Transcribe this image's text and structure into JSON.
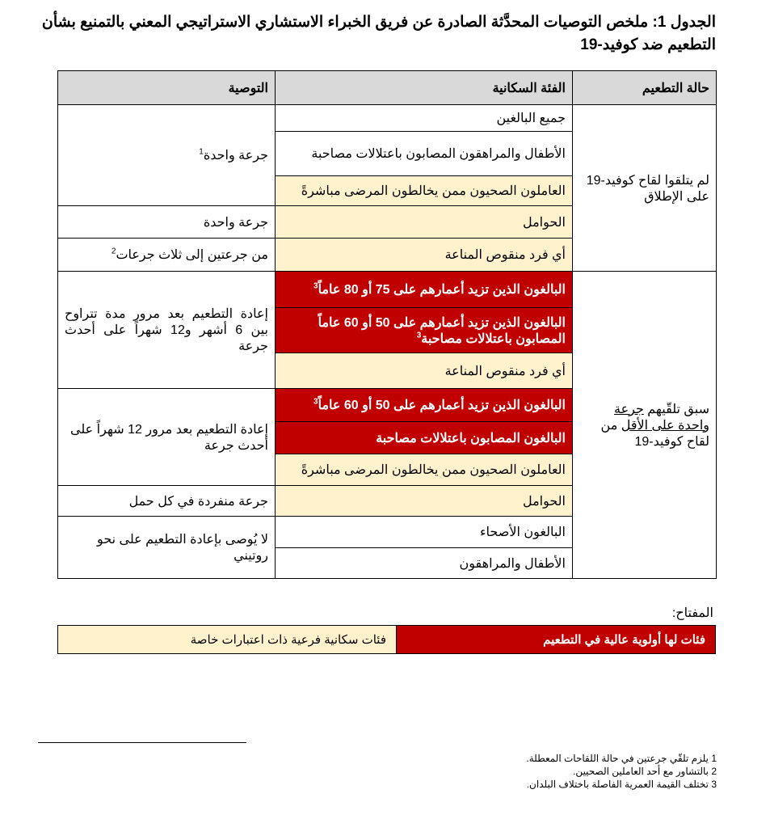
{
  "title": "الجدول 1: ملخص التوصيات المحدَّثة الصادرة عن فريق الخبراء الاستشاري الاستراتيجي المعني بالتمنيع بشأن التطعيم ضد كوفيد-19",
  "table": {
    "headers": [
      "حالة التطعيم",
      "الفئة السكانية",
      "التوصية"
    ],
    "status": {
      "never": "لم يتلقوا لقاح كوفيد-19 على الإطلاق",
      "prior_a": "سبق تلقّيهم ",
      "prior_u1": "جرعة واحدة على الأقل",
      "prior_b": " من لقاح كوفيد-19"
    },
    "populations": [
      "جميع البالغين",
      "الأطفال والمراهقون المصابون باعتلالات مصاحبة",
      "العاملون الصحيون ممن يخالطون المرضى مباشرةً",
      "الحوامل",
      "أي فرد منقوص المناعة",
      "البالغون الذين تزيد أعمارهم على 75 أو 80 عاماً",
      "البالغون الذين تزيد أعمارهم على 50 أو 60 عاماً المصابون باعتلالات مصاحبة",
      "أي فرد منقوص المناعة",
      "البالغون الذين تزيد أعمارهم على 50 أو 60 عاماً",
      "البالغون المصابون باعتلالات مصاحبة",
      "العاملون الصحيون ممن يخالطون المرضى مباشرةً",
      "الحوامل",
      "البالغون الأصحاء",
      "الأطفال والمراهقون"
    ],
    "recommendations": [
      "جرعة واحدة",
      "جرعة واحدة",
      "من جرعتين إلى ثلاث جرعات",
      "إعادة التطعيم بعد مرور مدة تتراوح بين 6 أشهر و12 شهراً على أحدث جرعة",
      "إعادة التطعيم بعد مرور 12 شهراً على أحدث جرعة",
      "جرعة منفردة في كل حمل",
      "لا يُوصى بإعادة التطعيم على نحو روتيني"
    ],
    "sup1": "1",
    "sup2": "2",
    "sup3": "3"
  },
  "key": {
    "label": "المفتاح:",
    "high_priority": "فئات لها أولوية عالية في التطعيم",
    "special": "فئات سكانية فرعية ذات اعتبارات خاصة"
  },
  "footnotes": [
    {
      "n": "1",
      "text": "يلزم تلقّي جرعتين في حالة اللقاحات المعطلة."
    },
    {
      "n": "2",
      "text": "بالتشاور مع أحد العاملين الصحيين."
    },
    {
      "n": "3",
      "text": "تختلف القيمة العمرية الفاصلة باختلاف البلدان."
    }
  ],
  "colors": {
    "high_priority": "#c00000",
    "special": "#fff2cc",
    "header": "#d9d9d9"
  }
}
